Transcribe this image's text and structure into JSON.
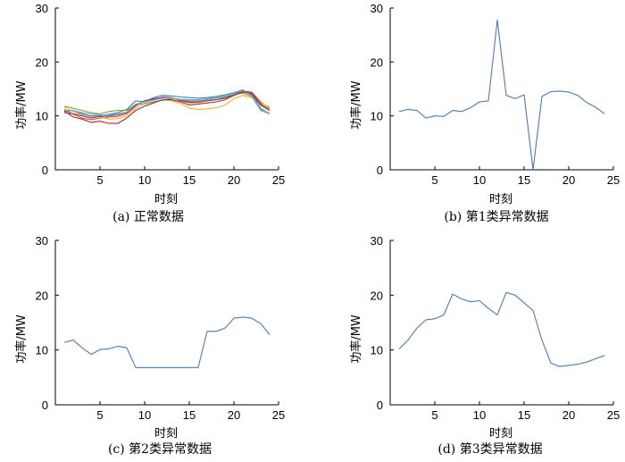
{
  "chart_data": [
    {
      "type": "line",
      "title": "",
      "caption": "(a) 正常数据",
      "xlabel": "时刻",
      "ylabel": "功率/MW",
      "xlim": [
        0,
        25
      ],
      "ylim": [
        0,
        30
      ],
      "xticks": [
        5,
        10,
        15,
        20,
        25
      ],
      "yticks": [
        0,
        10,
        20,
        30
      ],
      "x": [
        1,
        2,
        3,
        4,
        5,
        6,
        7,
        8,
        9,
        10,
        11,
        12,
        13,
        14,
        15,
        16,
        17,
        18,
        19,
        20,
        21,
        22,
        23,
        24
      ],
      "series": [
        {
          "color": "#4e79b0",
          "values": [
            10.8,
            11.0,
            10.4,
            10.0,
            10.1,
            10.3,
            10.6,
            11.2,
            12.8,
            12.6,
            13.4,
            13.8,
            13.7,
            13.5,
            13.4,
            13.3,
            13.4,
            13.6,
            13.9,
            14.3,
            14.8,
            13.9,
            11.4,
            10.4
          ]
        },
        {
          "color": "#d9542a",
          "values": [
            11.2,
            10.3,
            9.6,
            9.3,
            9.6,
            9.8,
            9.9,
            10.4,
            11.8,
            12.8,
            13.0,
            13.5,
            13.4,
            12.8,
            12.4,
            12.5,
            12.8,
            13.0,
            13.4,
            14.0,
            14.6,
            14.4,
            12.6,
            11.3
          ]
        },
        {
          "color": "#e8b526",
          "values": [
            11.6,
            10.8,
            10.2,
            9.8,
            9.9,
            9.4,
            9.5,
            10.0,
            11.4,
            12.4,
            12.6,
            13.0,
            12.8,
            12.3,
            11.4,
            11.2,
            11.3,
            11.5,
            12.0,
            13.2,
            13.8,
            13.4,
            12.4,
            11.6
          ]
        },
        {
          "color": "#7b3e8f",
          "values": [
            10.6,
            10.4,
            10.0,
            9.6,
            9.9,
            10.0,
            10.2,
            10.6,
            12.0,
            12.8,
            13.2,
            13.4,
            13.3,
            12.9,
            12.6,
            12.6,
            12.8,
            13.0,
            13.3,
            13.9,
            14.5,
            14.0,
            12.0,
            11.0
          ]
        },
        {
          "color": "#7aa53a",
          "values": [
            11.8,
            11.4,
            11.0,
            10.6,
            10.4,
            10.8,
            11.0,
            11.0,
            12.2,
            12.2,
            12.6,
            12.9,
            13.2,
            13.0,
            12.8,
            12.8,
            13.0,
            13.3,
            13.5,
            14.0,
            14.2,
            13.6,
            11.0,
            10.4
          ]
        },
        {
          "color": "#5fb2d6",
          "values": [
            11.0,
            11.0,
            10.6,
            10.4,
            10.2,
            10.2,
            10.4,
            10.7,
            12.2,
            12.6,
            12.9,
            13.3,
            13.3,
            13.1,
            13.0,
            13.0,
            13.2,
            13.4,
            13.7,
            14.2,
            14.6,
            13.8,
            11.2,
            10.5
          ]
        },
        {
          "color": "#a3283a",
          "values": [
            10.9,
            9.8,
            9.4,
            8.8,
            9.0,
            8.6,
            8.6,
            9.6,
            11.0,
            11.8,
            12.4,
            13.0,
            13.0,
            12.6,
            12.0,
            12.2,
            12.4,
            12.6,
            13.0,
            13.8,
            14.4,
            14.2,
            12.2,
            11.0
          ]
        }
      ]
    },
    {
      "type": "line",
      "title": "",
      "caption": "(b) 第1类异常数据",
      "xlabel": "时刻",
      "ylabel": "功率/MW",
      "xlim": [
        0,
        25
      ],
      "ylim": [
        0,
        30
      ],
      "xticks": [
        5,
        10,
        15,
        20,
        25
      ],
      "yticks": [
        0,
        10,
        20,
        30
      ],
      "x": [
        1,
        2,
        3,
        4,
        5,
        6,
        7,
        8,
        9,
        10,
        11,
        12,
        13,
        14,
        15,
        16,
        17,
        18,
        19,
        20,
        21,
        22,
        23,
        24
      ],
      "series": [
        {
          "color": "#4e79b0",
          "values": [
            10.8,
            11.2,
            11.0,
            9.6,
            10.0,
            9.9,
            11.0,
            10.8,
            11.5,
            12.6,
            12.8,
            27.8,
            13.8,
            13.2,
            13.9,
            0.0,
            13.6,
            14.5,
            14.6,
            14.4,
            13.8,
            12.5,
            11.6,
            10.4
          ]
        }
      ]
    },
    {
      "type": "line",
      "title": "",
      "caption": "(c) 第2类异常数据",
      "xlabel": "时刻",
      "ylabel": "功率/MW",
      "xlim": [
        0,
        25
      ],
      "ylim": [
        0,
        30
      ],
      "xticks": [
        5,
        10,
        15,
        20,
        25
      ],
      "yticks": [
        0,
        10,
        20,
        30
      ],
      "x": [
        1,
        2,
        3,
        4,
        5,
        6,
        7,
        8,
        9,
        10,
        11,
        12,
        13,
        14,
        15,
        16,
        17,
        18,
        19,
        20,
        21,
        22,
        23,
        24
      ],
      "series": [
        {
          "color": "#4e79b0",
          "values": [
            11.4,
            11.8,
            10.4,
            9.2,
            10.1,
            10.2,
            10.7,
            10.4,
            6.8,
            6.8,
            6.8,
            6.8,
            6.8,
            6.8,
            6.8,
            6.8,
            13.4,
            13.4,
            14.0,
            15.8,
            16.0,
            15.8,
            14.8,
            12.8
          ]
        }
      ]
    },
    {
      "type": "line",
      "title": "",
      "caption": "(d) 第3类异常数据",
      "xlabel": "时刻",
      "ylabel": "功率/MW",
      "xlim": [
        0,
        25
      ],
      "ylim": [
        0,
        30
      ],
      "xticks": [
        5,
        10,
        15,
        20,
        25
      ],
      "yticks": [
        0,
        10,
        20,
        30
      ],
      "x": [
        1,
        2,
        3,
        4,
        5,
        6,
        7,
        8,
        9,
        10,
        11,
        12,
        13,
        14,
        15,
        16,
        17,
        18,
        19,
        20,
        21,
        22,
        23,
        24
      ],
      "series": [
        {
          "color": "#4e79b0",
          "values": [
            10.2,
            11.8,
            14.0,
            15.5,
            15.7,
            16.4,
            20.2,
            19.3,
            18.8,
            19.0,
            17.6,
            16.4,
            20.5,
            20.0,
            18.6,
            17.2,
            11.8,
            7.6,
            7.0,
            7.2,
            7.4,
            7.8,
            8.4,
            9.0
          ]
        }
      ]
    }
  ]
}
